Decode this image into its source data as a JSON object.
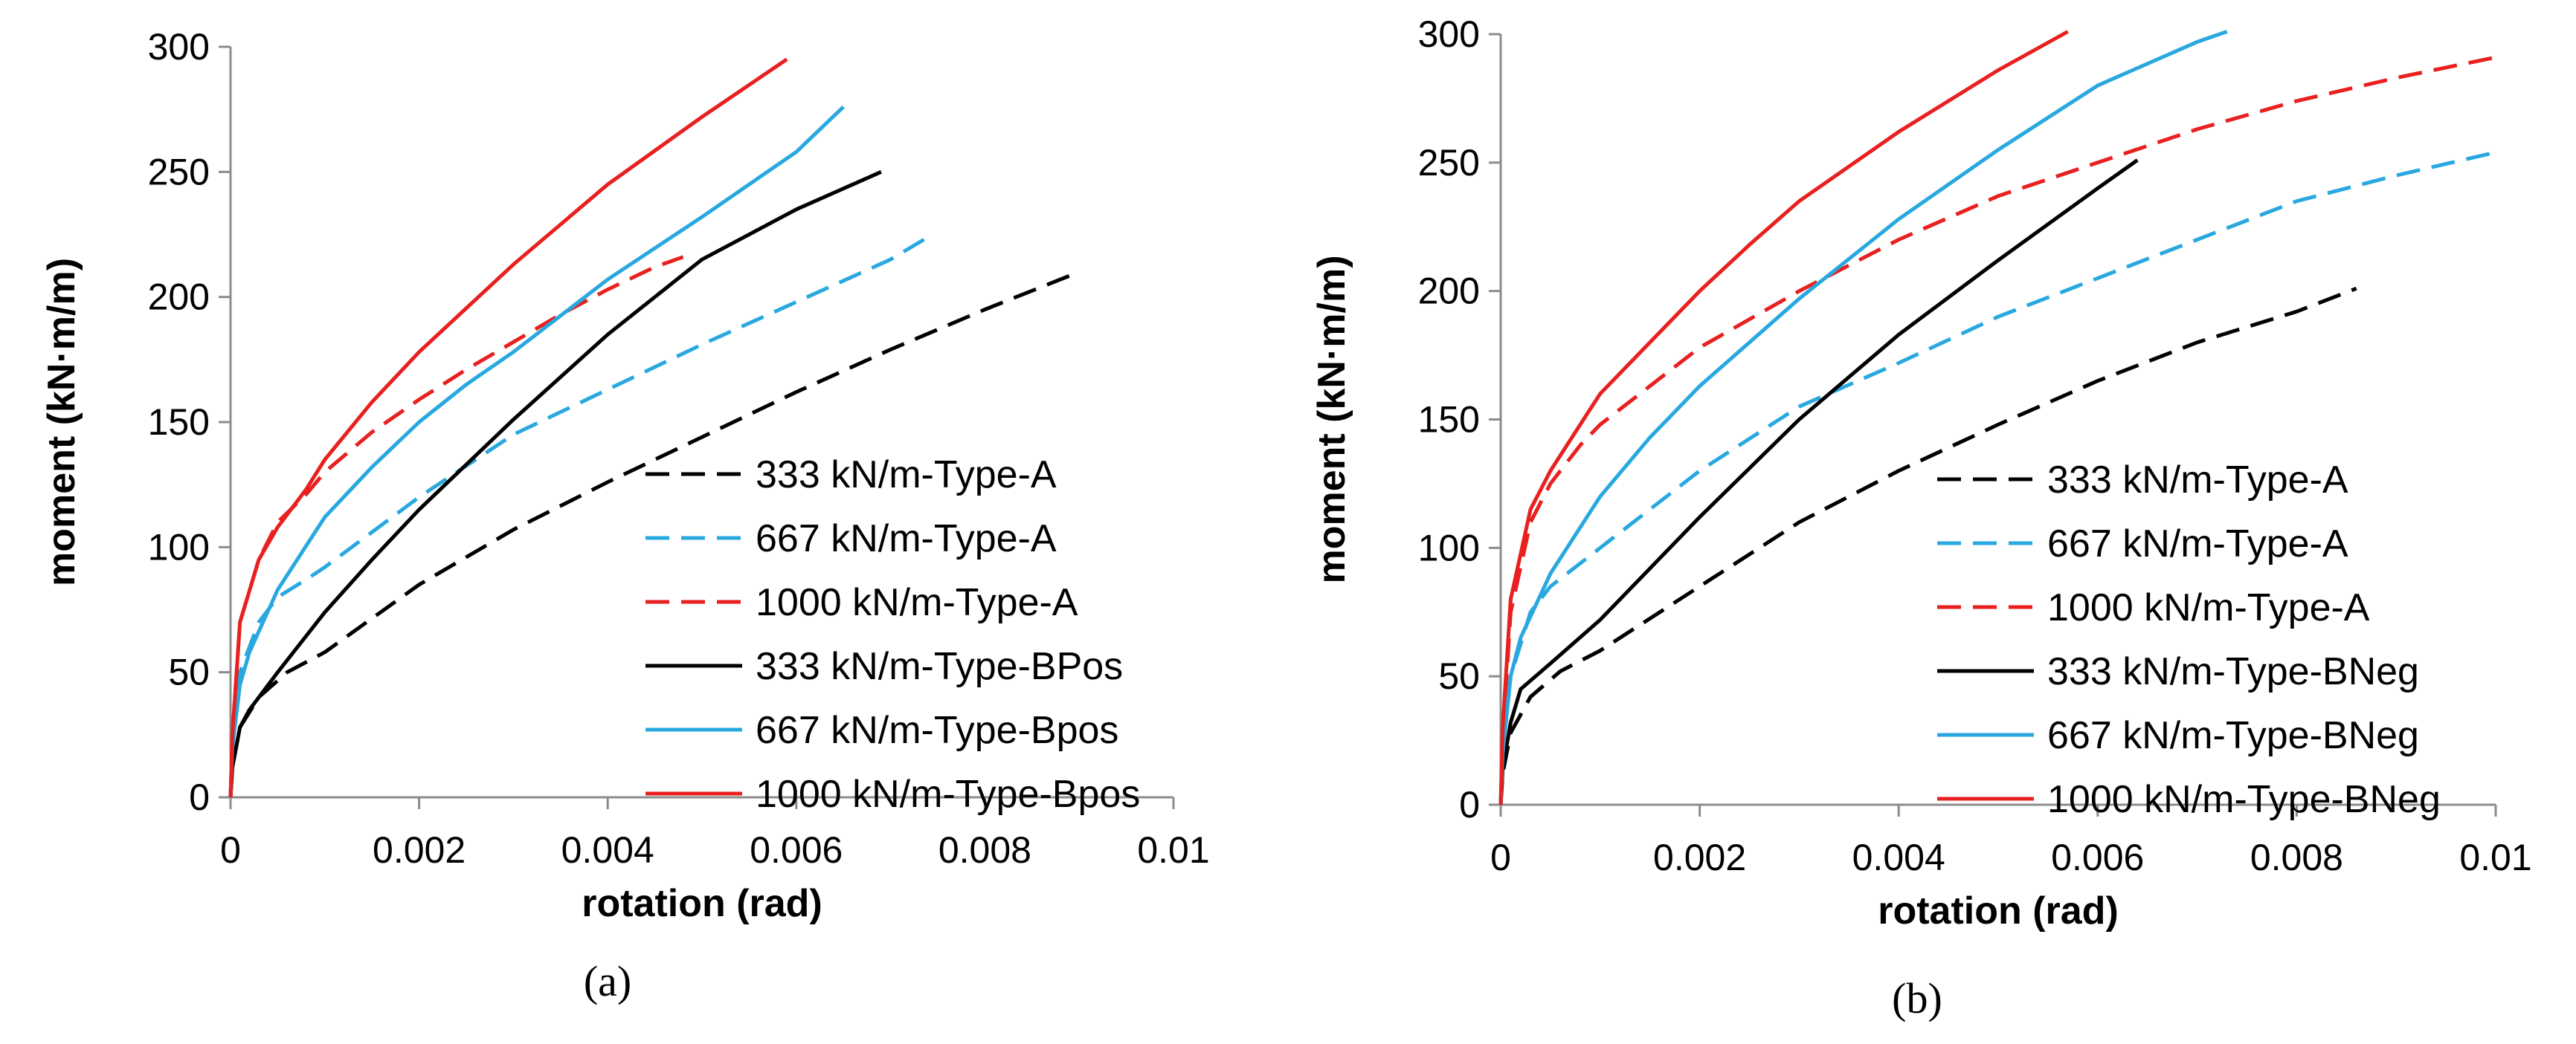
{
  "chart_data": [
    {
      "type": "line",
      "caption": "(a)",
      "xlabel": "rotation (rad)",
      "ylabel": "moment (kN·m/m)",
      "xlim": [
        0,
        0.01
      ],
      "ylim": [
        0,
        300
      ],
      "xticks": [
        0,
        0.002,
        0.004,
        0.006,
        0.008,
        0.01
      ],
      "yticks": [
        0,
        50,
        100,
        150,
        200,
        250,
        300
      ],
      "xtick_labels": [
        "0",
        "0.002",
        "0.004",
        "0.006",
        "0.008",
        "0.01"
      ],
      "ytick_labels": [
        "0",
        "50",
        "100",
        "150",
        "200",
        "250",
        "300"
      ],
      "legend_position": "bottom-right",
      "series": [
        {
          "name": "333 kN/m-Type-A",
          "color": "#000000",
          "dash": "dashed",
          "x": [
            0,
            2e-05,
            0.0001,
            0.0003,
            0.0006,
            0.001,
            0.002,
            0.003,
            0.004,
            0.005,
            0.006,
            0.007,
            0.008,
            0.009
          ],
          "y": [
            0,
            12,
            28,
            40,
            50,
            58,
            85,
            107,
            126,
            144,
            162,
            179,
            195,
            210
          ]
        },
        {
          "name": "667 kN/m-Type-A",
          "color": "#29a8e0",
          "dash": "dashed",
          "x": [
            0,
            2e-05,
            0.0001,
            0.0003,
            0.0005,
            0.0008,
            0.001,
            0.002,
            0.003,
            0.004,
            0.005,
            0.006,
            0.007,
            0.0074
          ],
          "y": [
            0,
            20,
            50,
            70,
            80,
            87,
            92,
            120,
            145,
            163,
            181,
            198,
            215,
            224
          ]
        },
        {
          "name": "1000 kN/m-Type-A",
          "color": "#e8201f",
          "dash": "dashed",
          "x": [
            0,
            2e-05,
            0.0001,
            0.0003,
            0.0005,
            0.0008,
            0.001,
            0.0015,
            0.002,
            0.0025,
            0.003,
            0.0035,
            0.004,
            0.0045,
            0.0048
          ],
          "y": [
            0,
            25,
            70,
            95,
            110,
            121,
            130,
            146,
            159,
            171,
            182,
            193,
            203,
            212,
            216
          ]
        },
        {
          "name": "333 kN/m-Type-BPos",
          "color": "#000000",
          "dash": "solid",
          "x": [
            0,
            2e-05,
            0.0001,
            0.0002,
            0.0005,
            0.001,
            0.0015,
            0.002,
            0.003,
            0.004,
            0.005,
            0.006,
            0.0069
          ],
          "y": [
            0,
            12,
            28,
            35,
            50,
            74,
            95,
            115,
            151,
            185,
            215,
            235,
            250
          ]
        },
        {
          "name": "667 kN/m-Type-Bpos",
          "color": "#29a8e0",
          "dash": "solid",
          "x": [
            0,
            2e-05,
            0.0001,
            0.0002,
            0.0005,
            0.001,
            0.0015,
            0.002,
            0.0025,
            0.003,
            0.004,
            0.005,
            0.006,
            0.0065
          ],
          "y": [
            0,
            20,
            45,
            58,
            83,
            112,
            132,
            150,
            165,
            178,
            207,
            232,
            258,
            276
          ]
        },
        {
          "name": "1000 kN/m-Type-Bpos",
          "color": "#e8201f",
          "dash": "solid",
          "x": [
            0,
            2e-05,
            0.0001,
            0.0003,
            0.0005,
            0.0008,
            0.001,
            0.0015,
            0.002,
            0.003,
            0.004,
            0.005,
            0.0059
          ],
          "y": [
            0,
            25,
            70,
            95,
            108,
            123,
            135,
            158,
            178,
            213,
            245,
            272,
            295
          ]
        }
      ]
    },
    {
      "type": "line",
      "caption": "(b)",
      "xlabel": "rotation (rad)",
      "ylabel": "moment (kN·m/m)",
      "xlim": [
        0,
        0.01
      ],
      "ylim": [
        0,
        300
      ],
      "xticks": [
        0,
        0.002,
        0.004,
        0.006,
        0.008,
        0.01
      ],
      "yticks": [
        0,
        50,
        100,
        150,
        200,
        250,
        300
      ],
      "xtick_labels": [
        "0",
        "0.002",
        "0.004",
        "0.006",
        "0.008",
        "0.01"
      ],
      "ytick_labels": [
        "0",
        "50",
        "100",
        "150",
        "200",
        "250",
        "300"
      ],
      "legend_position": "bottom-right",
      "series": [
        {
          "name": "333 kN/m-Type-A",
          "color": "#000000",
          "dash": "dashed",
          "x": [
            0,
            2e-05,
            0.0001,
            0.0003,
            0.0006,
            0.001,
            0.002,
            0.003,
            0.004,
            0.005,
            0.006,
            0.007,
            0.008,
            0.0086
          ],
          "y": [
            0,
            12,
            28,
            42,
            52,
            60,
            85,
            110,
            130,
            148,
            165,
            180,
            192,
            201
          ]
        },
        {
          "name": "667 kN/m-Type-A",
          "color": "#29a8e0",
          "dash": "dashed",
          "x": [
            0,
            2e-05,
            0.0001,
            0.0003,
            0.0005,
            0.0008,
            0.001,
            0.002,
            0.003,
            0.004,
            0.005,
            0.006,
            0.007,
            0.008,
            0.009,
            0.01
          ],
          "y": [
            0,
            20,
            50,
            75,
            85,
            94,
            100,
            130,
            155,
            172,
            190,
            205,
            220,
            235,
            245,
            254
          ]
        },
        {
          "name": "1000 kN/m-Type-A",
          "color": "#e8201f",
          "dash": "dashed",
          "x": [
            0,
            2e-05,
            0.0001,
            0.0003,
            0.0005,
            0.0008,
            0.001,
            0.002,
            0.003,
            0.004,
            0.005,
            0.006,
            0.007,
            0.008,
            0.009,
            0.01
          ],
          "y": [
            0,
            25,
            75,
            110,
            125,
            140,
            148,
            178,
            200,
            220,
            237,
            250,
            263,
            274,
            283,
            291
          ]
        },
        {
          "name": "333 kN/m-Type-BNeg",
          "color": "#000000",
          "dash": "solid",
          "x": [
            0,
            2e-05,
            0.0001,
            0.0002,
            0.0005,
            0.001,
            0.0015,
            0.002,
            0.003,
            0.004,
            0.005,
            0.006,
            0.0064
          ],
          "y": [
            0,
            14,
            32,
            45,
            55,
            72,
            92,
            112,
            150,
            183,
            212,
            240,
            251
          ]
        },
        {
          "name": "667 kN/m-Type-BNeg",
          "color": "#29a8e0",
          "dash": "solid",
          "x": [
            0,
            2e-05,
            0.0001,
            0.0002,
            0.0005,
            0.001,
            0.0015,
            0.002,
            0.003,
            0.004,
            0.005,
            0.006,
            0.007,
            0.0073
          ],
          "y": [
            0,
            20,
            50,
            65,
            90,
            120,
            143,
            163,
            197,
            228,
            255,
            280,
            297,
            301
          ]
        },
        {
          "name": "1000 kN/m-Type-BNeg",
          "color": "#e8201f",
          "dash": "solid",
          "x": [
            0,
            2e-05,
            0.0001,
            0.0003,
            0.0005,
            0.0008,
            0.001,
            0.0015,
            0.002,
            0.0025,
            0.003,
            0.004,
            0.005,
            0.0057
          ],
          "y": [
            0,
            30,
            80,
            115,
            130,
            148,
            160,
            180,
            200,
            218,
            235,
            262,
            286,
            301
          ]
        }
      ]
    }
  ]
}
